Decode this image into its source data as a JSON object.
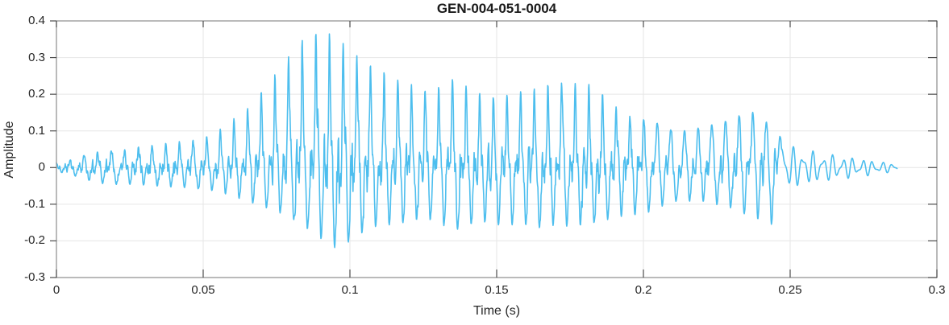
{
  "figure": {
    "background": "#ffffff"
  },
  "chart_data": {
    "type": "line",
    "title": "GEN-004-051-0004",
    "xlabel": "Time (s)",
    "ylabel": "Amplitude",
    "xlim": [
      0,
      0.3
    ],
    "ylim": [
      -0.3,
      0.4
    ],
    "grid": true,
    "legend_position": "none",
    "xticks": {
      "values": [
        0,
        0.05,
        0.1,
        0.15,
        0.2,
        0.25,
        0.3
      ],
      "labels": [
        "0",
        "0.05",
        "0.1",
        "0.15",
        "0.2",
        "0.25",
        "0.3"
      ]
    },
    "yticks": {
      "values": [
        -0.3,
        -0.2,
        -0.1,
        0,
        0.1,
        0.2,
        0.3,
        0.4
      ],
      "labels": [
        "-0.3",
        "-0.2",
        "-0.1",
        "0",
        "0.1",
        "0.2",
        "0.3",
        "0.4"
      ]
    },
    "colors": {
      "line": "#4DBEEE",
      "grid": "#e6e6e6",
      "box": "#8c8c8c",
      "tick": "#4d4d4d",
      "text": "#262626",
      "title_text": "#1a1a1a",
      "background": "#ffffff"
    },
    "signal": {
      "description": "speech-like audio waveform; envelope of positive and negative peaks read from plot",
      "pitch_hz": 215,
      "start_time_s": 0,
      "end_time_s": 0.2865,
      "tail_start_s": 0.247,
      "peak_amplitude": 0.37,
      "min_amplitude": -0.24,
      "envelope_t_upper_lower": [
        [
          0.0,
          0.012,
          -0.012
        ],
        [
          0.004,
          0.018,
          -0.018
        ],
        [
          0.008,
          0.03,
          -0.03
        ],
        [
          0.012,
          0.04,
          -0.04
        ],
        [
          0.016,
          0.045,
          -0.048
        ],
        [
          0.02,
          0.045,
          -0.05
        ],
        [
          0.025,
          0.05,
          -0.05
        ],
        [
          0.03,
          0.06,
          -0.052
        ],
        [
          0.035,
          0.062,
          -0.055
        ],
        [
          0.04,
          0.07,
          -0.058
        ],
        [
          0.045,
          0.072,
          -0.06
        ],
        [
          0.05,
          0.08,
          -0.065
        ],
        [
          0.055,
          0.1,
          -0.07
        ],
        [
          0.06,
          0.13,
          -0.085
        ],
        [
          0.065,
          0.16,
          -0.1
        ],
        [
          0.07,
          0.21,
          -0.115
        ],
        [
          0.075,
          0.26,
          -0.13
        ],
        [
          0.08,
          0.31,
          -0.15
        ],
        [
          0.085,
          0.36,
          -0.18
        ],
        [
          0.09,
          0.37,
          -0.21
        ],
        [
          0.094,
          0.365,
          -0.24
        ],
        [
          0.1,
          0.32,
          -0.22
        ],
        [
          0.105,
          0.29,
          -0.19
        ],
        [
          0.11,
          0.27,
          -0.17
        ],
        [
          0.115,
          0.24,
          -0.17
        ],
        [
          0.12,
          0.23,
          -0.16
        ],
        [
          0.125,
          0.21,
          -0.15
        ],
        [
          0.13,
          0.22,
          -0.16
        ],
        [
          0.135,
          0.24,
          -0.19
        ],
        [
          0.14,
          0.22,
          -0.17
        ],
        [
          0.145,
          0.2,
          -0.16
        ],
        [
          0.15,
          0.19,
          -0.17
        ],
        [
          0.155,
          0.2,
          -0.17
        ],
        [
          0.16,
          0.21,
          -0.17
        ],
        [
          0.165,
          0.22,
          -0.18
        ],
        [
          0.17,
          0.235,
          -0.17
        ],
        [
          0.175,
          0.225,
          -0.175
        ],
        [
          0.18,
          0.235,
          -0.17
        ],
        [
          0.185,
          0.21,
          -0.16
        ],
        [
          0.19,
          0.17,
          -0.15
        ],
        [
          0.195,
          0.14,
          -0.14
        ],
        [
          0.2,
          0.13,
          -0.14
        ],
        [
          0.205,
          0.12,
          -0.12
        ],
        [
          0.21,
          0.1,
          -0.1
        ],
        [
          0.215,
          0.1,
          -0.1
        ],
        [
          0.22,
          0.11,
          -0.1
        ],
        [
          0.225,
          0.12,
          -0.11
        ],
        [
          0.23,
          0.13,
          -0.12
        ],
        [
          0.235,
          0.15,
          -0.14
        ],
        [
          0.238,
          0.15,
          -0.15
        ],
        [
          0.241,
          0.13,
          -0.16
        ],
        [
          0.244,
          0.11,
          -0.17
        ],
        [
          0.247,
          0.08,
          -0.08
        ],
        [
          0.25,
          0.055,
          -0.055
        ],
        [
          0.255,
          0.045,
          -0.045
        ],
        [
          0.26,
          0.038,
          -0.038
        ],
        [
          0.265,
          0.032,
          -0.032
        ],
        [
          0.27,
          0.027,
          -0.027
        ],
        [
          0.275,
          0.022,
          -0.022
        ],
        [
          0.28,
          0.016,
          -0.016
        ],
        [
          0.284,
          0.012,
          -0.012
        ],
        [
          0.2865,
          0.008,
          -0.008
        ]
      ]
    }
  }
}
